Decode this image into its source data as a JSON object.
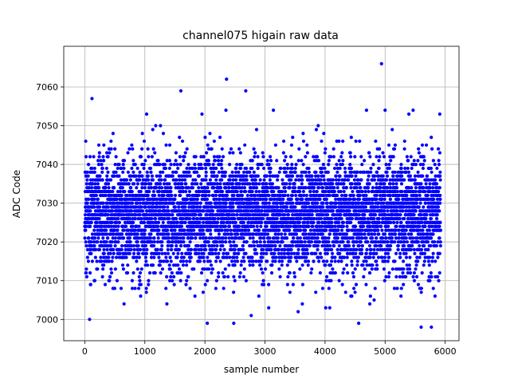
{
  "chart_data": {
    "type": "scatter",
    "title": "channel075 higain raw data",
    "xlabel": "sample number",
    "ylabel": "ADC Code",
    "xlim": [
      -350,
      6230
    ],
    "ylim": [
      6994.5,
      7070.5
    ],
    "xticks": [
      0,
      1000,
      2000,
      3000,
      4000,
      5000,
      6000
    ],
    "yticks": [
      7000,
      7010,
      7020,
      7030,
      7040,
      7050,
      7060
    ],
    "grid": true,
    "marker_color": "#0000ff",
    "n_samples": 5925,
    "base_value": 7027,
    "spread": 7.5,
    "notable_points": [
      {
        "x": 4940,
        "y": 7066
      },
      {
        "x": 2360,
        "y": 7062
      },
      {
        "x": 1600,
        "y": 7059
      },
      {
        "x": 2680,
        "y": 7059
      },
      {
        "x": 120,
        "y": 7057
      },
      {
        "x": 80,
        "y": 7000
      },
      {
        "x": 2040,
        "y": 6999
      },
      {
        "x": 2480,
        "y": 6999
      },
      {
        "x": 4560,
        "y": 6999
      },
      {
        "x": 5600,
        "y": 6998
      },
      {
        "x": 5770,
        "y": 6998
      },
      {
        "x": 1030,
        "y": 7053
      },
      {
        "x": 3140,
        "y": 7054
      },
      {
        "x": 5000,
        "y": 7054
      },
      {
        "x": 5910,
        "y": 7053
      }
    ]
  }
}
